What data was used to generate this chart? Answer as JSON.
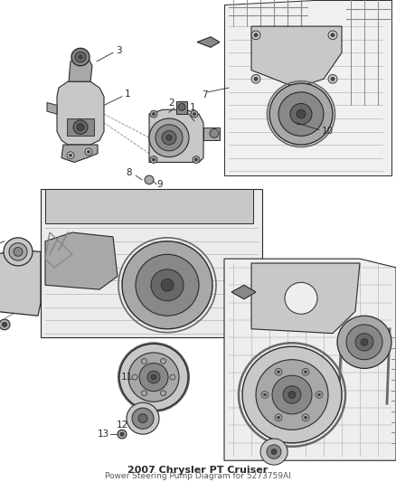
{
  "title": "2007 Chrysler PT Cruiser",
  "subtitle": "Power Steering Pump Diagram for 5273759AI",
  "background_color": "#ffffff",
  "fig_width": 4.38,
  "fig_height": 5.33,
  "dpi": 100,
  "line_color": "#2a2a2a",
  "gray1": "#c8c8c8",
  "gray2": "#a8a8a8",
  "gray3": "#888888",
  "gray4": "#686868",
  "gray5": "#484848",
  "white": "#f5f5f5",
  "callout_fontsize": 7.5,
  "title_fontsize": 8,
  "subtitle_fontsize": 6.5
}
